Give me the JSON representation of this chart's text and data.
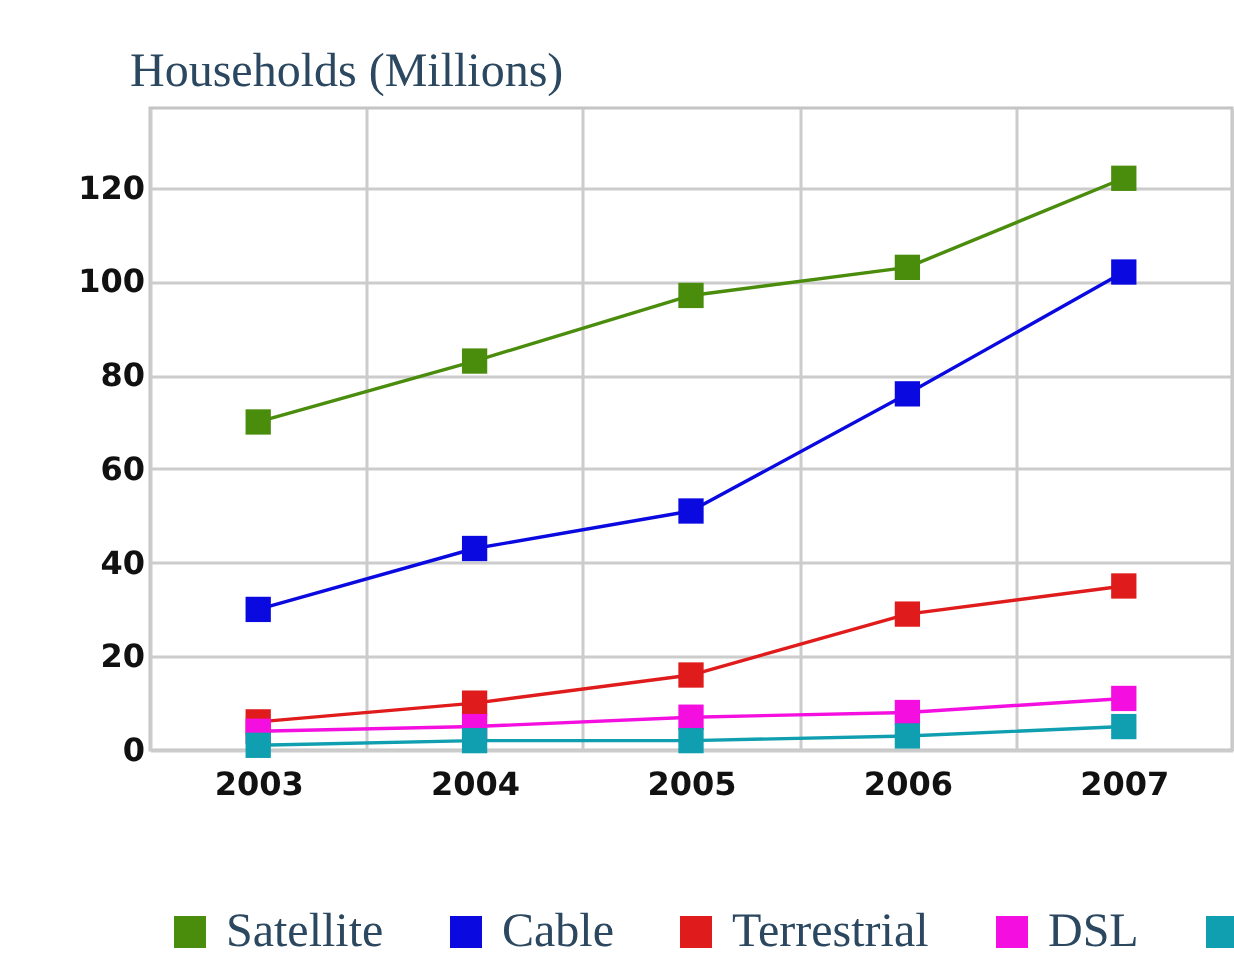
{
  "chart_data": {
    "type": "line",
    "title": "Households (Millions)",
    "categories": [
      "2003",
      "2004",
      "2005",
      "2006",
      "2007"
    ],
    "series": [
      {
        "name": "Satellite",
        "color": "#4a8c0c",
        "values": [
          70,
          83,
          97,
          103,
          122
        ]
      },
      {
        "name": "Cable",
        "color": "#0a0ae0",
        "values": [
          30,
          43,
          51,
          76,
          102
        ]
      },
      {
        "name": "Terrestrial",
        "color": "#e01b1b",
        "values": [
          6,
          10,
          16,
          29,
          35
        ]
      },
      {
        "name": "DSL",
        "color": "#f40fe0",
        "values": [
          4,
          5,
          7,
          8,
          11
        ]
      },
      {
        "color": "#0f9fb0",
        "values": [
          1,
          2,
          2,
          3,
          5
        ]
      }
    ],
    "ylim": [
      0,
      137
    ],
    "yticks": [
      0,
      20,
      40,
      60,
      80,
      100,
      120
    ],
    "grid": true,
    "legend": "bottom",
    "marker": "square",
    "line_style": "solid"
  }
}
